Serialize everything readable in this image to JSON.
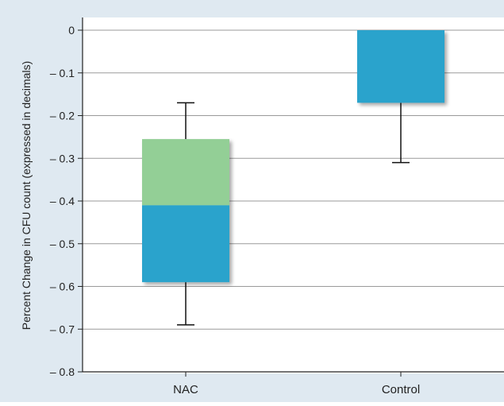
{
  "chart_data": {
    "type": "box",
    "ylabel": "Percent Change in CFU count (expressed in decimals)",
    "ylim": [
      -0.8,
      0
    ],
    "yticks": [
      0,
      -0.1,
      -0.2,
      -0.3,
      -0.4,
      -0.5,
      -0.6,
      -0.7,
      -0.8
    ],
    "ytick_labels": [
      "0",
      "– 0.1",
      "– 0.2",
      "– 0.3",
      "– 0.4",
      "– 0.5",
      "– 0.6",
      "– 0.7",
      "– 0.8"
    ],
    "grid": true,
    "categories": [
      "NAC",
      "Control"
    ],
    "boxes": [
      {
        "name": "NAC",
        "whisker_max": -0.17,
        "q3": -0.255,
        "median": -0.41,
        "q1": -0.59,
        "whisker_min": -0.69
      },
      {
        "name": "Control",
        "whisker_max": 0.0,
        "q3": 0.0,
        "median": 0.0,
        "q1": -0.17,
        "whisker_min": -0.31
      }
    ],
    "colors": {
      "upper_box": "#93cf96",
      "lower_box": "#29a3cc",
      "frame": "#dfe9f1",
      "grid": "#9a9a9a"
    }
  }
}
